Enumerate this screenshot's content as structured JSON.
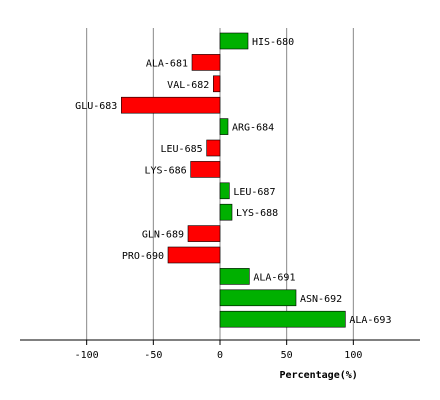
{
  "chart_data": {
    "type": "bar",
    "orientation": "horizontal",
    "title": "",
    "xlabel": "Percentage(%)",
    "ylabel": "",
    "xlim": [
      -150,
      150
    ],
    "xticks": [
      -100,
      -50,
      0,
      50,
      100
    ],
    "xtick_labels": [
      "-100",
      "-50",
      "0",
      "50",
      "100"
    ],
    "grid": "vertical lines at ticks",
    "legend": "none",
    "colors": {
      "positive": "#00b000",
      "negative": "#ff0000",
      "grid": "#888888",
      "axis": "#000000"
    },
    "categories": [
      "HIS-680",
      "ALA-681",
      "VAL-682",
      "GLU-683",
      "ARG-684",
      "LEU-685",
      "LYS-686",
      "LEU-687",
      "LYS-688",
      "GLN-689",
      "PRO-690",
      "ALA-691",
      "ASN-692",
      "ALA-693"
    ],
    "values": [
      21,
      -21,
      -5,
      -74,
      6,
      -10,
      -22,
      7,
      9,
      -24,
      -39,
      22,
      57,
      94
    ]
  }
}
